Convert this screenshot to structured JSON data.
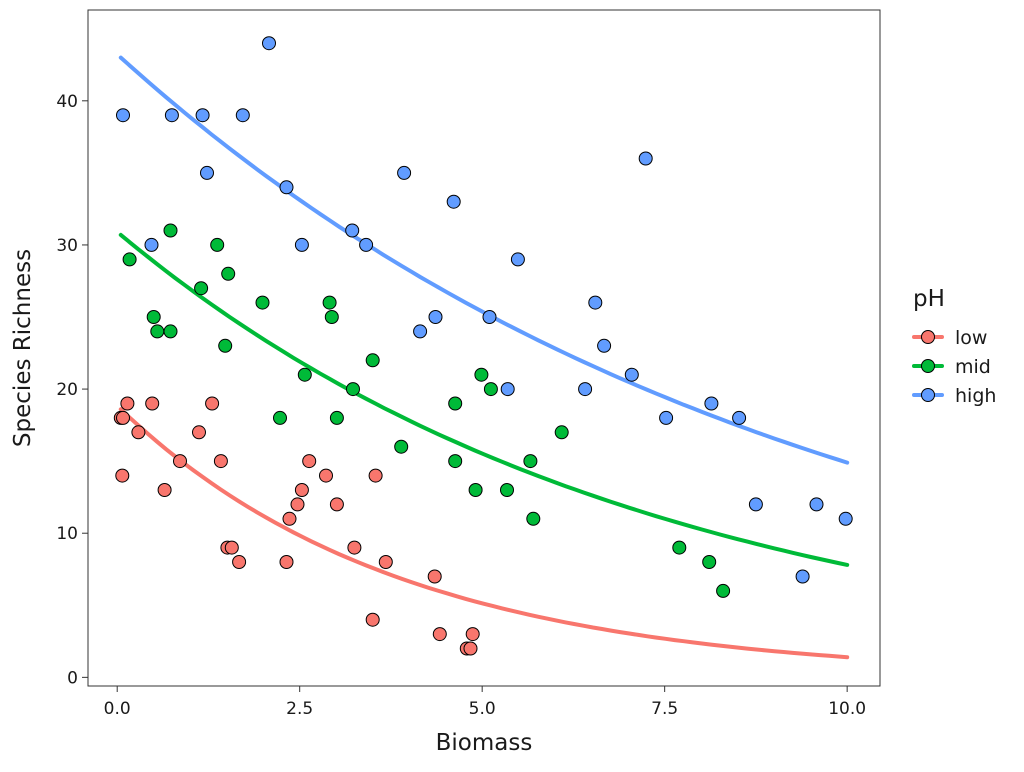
{
  "chart_data": {
    "type": "scatter",
    "xlabel": "Biomass",
    "ylabel": "Species Richness",
    "xlim": [
      -0.4,
      10.45
    ],
    "ylim": [
      -0.6,
      46.3
    ],
    "x_ticks": [
      0.0,
      2.5,
      5.0,
      7.5,
      10.0
    ],
    "x_tick_labels": [
      "0.0",
      "2.5",
      "5.0",
      "7.5",
      "10.0"
    ],
    "y_ticks": [
      0,
      10,
      20,
      30,
      40
    ],
    "y_tick_labels": [
      "0",
      "10",
      "20",
      "30",
      "40"
    ],
    "grid": false,
    "legend": {
      "title": "pH",
      "position": "right",
      "entries": [
        "low",
        "mid",
        "high"
      ]
    },
    "series": [
      {
        "name": "low",
        "color": "#F8766D",
        "points": [
          [
            0.05,
            18
          ],
          [
            0.08,
            18
          ],
          [
            0.07,
            14
          ],
          [
            0.14,
            19
          ],
          [
            0.29,
            17
          ],
          [
            0.48,
            19
          ],
          [
            0.65,
            13
          ],
          [
            0.86,
            15
          ],
          [
            1.12,
            17
          ],
          [
            1.3,
            19
          ],
          [
            1.42,
            15
          ],
          [
            1.51,
            9
          ],
          [
            1.57,
            9
          ],
          [
            1.67,
            8
          ],
          [
            2.32,
            8
          ],
          [
            2.36,
            11
          ],
          [
            2.47,
            12
          ],
          [
            2.53,
            13
          ],
          [
            2.63,
            15
          ],
          [
            2.86,
            14
          ],
          [
            3.01,
            12
          ],
          [
            3.25,
            9
          ],
          [
            3.5,
            4
          ],
          [
            3.54,
            14
          ],
          [
            3.68,
            8
          ],
          [
            4.35,
            7
          ],
          [
            4.42,
            3
          ],
          [
            4.79,
            2
          ],
          [
            4.84,
            2
          ],
          [
            4.87,
            3
          ]
        ],
        "fit": [
          [
            0.05,
            18.6
          ],
          [
            10.0,
            1.4
          ]
        ]
      },
      {
        "name": "mid",
        "color": "#00BA38",
        "points": [
          [
            0.17,
            29
          ],
          [
            0.5,
            25
          ],
          [
            0.55,
            24
          ],
          [
            0.73,
            31
          ],
          [
            0.73,
            24
          ],
          [
            1.15,
            27
          ],
          [
            1.37,
            30
          ],
          [
            1.48,
            23
          ],
          [
            1.52,
            28
          ],
          [
            1.99,
            26
          ],
          [
            2.23,
            18
          ],
          [
            2.57,
            21
          ],
          [
            2.91,
            26
          ],
          [
            2.94,
            25
          ],
          [
            3.01,
            18
          ],
          [
            3.23,
            20
          ],
          [
            3.5,
            22
          ],
          [
            3.89,
            16
          ],
          [
            4.63,
            19
          ],
          [
            4.63,
            15
          ],
          [
            4.91,
            13
          ],
          [
            4.99,
            21
          ],
          [
            5.12,
            20
          ],
          [
            5.34,
            13
          ],
          [
            5.66,
            15
          ],
          [
            5.7,
            11
          ],
          [
            6.09,
            17
          ],
          [
            7.7,
            9
          ],
          [
            8.11,
            8
          ],
          [
            8.3,
            6
          ]
        ],
        "fit": [
          [
            0.05,
            30.7
          ],
          [
            10.0,
            7.8
          ]
        ]
      },
      {
        "name": "high",
        "color": "#619CFF",
        "points": [
          [
            0.08,
            39
          ],
          [
            0.47,
            30
          ],
          [
            0.75,
            39
          ],
          [
            1.17,
            39
          ],
          [
            1.23,
            35
          ],
          [
            1.72,
            39
          ],
          [
            2.08,
            44
          ],
          [
            2.32,
            34
          ],
          [
            2.53,
            30
          ],
          [
            3.22,
            31
          ],
          [
            3.41,
            30
          ],
          [
            3.93,
            35
          ],
          [
            4.15,
            24
          ],
          [
            4.36,
            25
          ],
          [
            4.61,
            33
          ],
          [
            5.1,
            25
          ],
          [
            5.35,
            20
          ],
          [
            5.49,
            29
          ],
          [
            6.41,
            20
          ],
          [
            6.55,
            26
          ],
          [
            6.67,
            23
          ],
          [
            7.05,
            21
          ],
          [
            7.24,
            36
          ],
          [
            7.52,
            18
          ],
          [
            8.14,
            19
          ],
          [
            8.52,
            18
          ],
          [
            8.75,
            12
          ],
          [
            9.39,
            7
          ],
          [
            9.58,
            12
          ],
          [
            9.98,
            11
          ]
        ],
        "fit": [
          [
            0.05,
            43.0
          ],
          [
            10.0,
            14.9
          ]
        ]
      }
    ]
  }
}
